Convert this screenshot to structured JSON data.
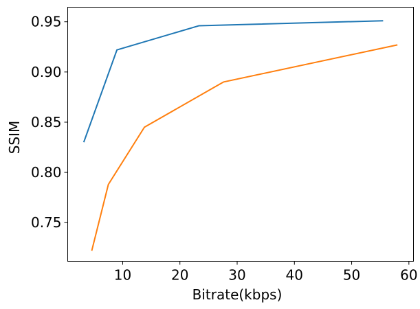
{
  "chart_data": {
    "type": "line",
    "title": "",
    "xlabel": "Bitrate(kbps)",
    "ylabel": "SSIM",
    "xlim": [
      0.4,
      60.8
    ],
    "ylim": [
      0.7115,
      0.9645
    ],
    "xticks": [
      10,
      20,
      30,
      40,
      50,
      60
    ],
    "xtick_labels": [
      "10",
      "20",
      "30",
      "40",
      "50",
      "60"
    ],
    "yticks": [
      0.75,
      0.8,
      0.85,
      0.9,
      0.95
    ],
    "ytick_labels": [
      "0.75",
      "0.80",
      "0.85",
      "0.90",
      "0.95"
    ],
    "grid": false,
    "legend": "none",
    "series": [
      {
        "color": "#1f77b4",
        "points": [
          [
            3.2,
            0.83
          ],
          [
            9.0,
            0.922
          ],
          [
            23.3,
            0.946
          ],
          [
            55.5,
            0.951
          ]
        ]
      },
      {
        "color": "#ff7f0e",
        "points": [
          [
            4.6,
            0.722
          ],
          [
            7.5,
            0.788
          ],
          [
            13.8,
            0.845
          ],
          [
            27.6,
            0.89
          ],
          [
            58.0,
            0.927
          ]
        ]
      }
    ]
  }
}
